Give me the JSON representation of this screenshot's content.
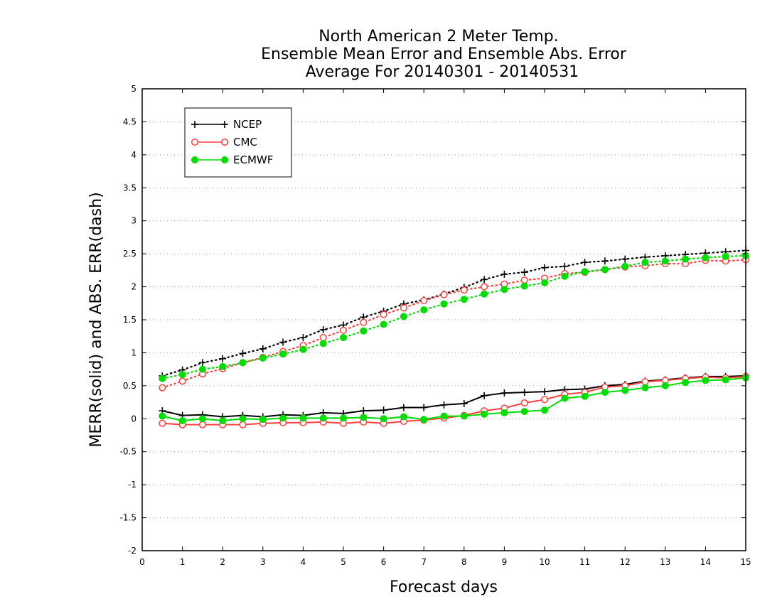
{
  "chart_data": {
    "type": "line",
    "title_lines": [
      "North American 2 Meter Temp.",
      "Ensemble Mean Error and Ensemble Abs. Error",
      "Average For 20140301 - 20140531"
    ],
    "xlabel": "Forecast days",
    "ylabel": "MERR(solid) and ABS. ERR(dash)",
    "xlim": [
      0,
      15
    ],
    "ylim": [
      -2,
      5
    ],
    "xticks": [
      0,
      1,
      2,
      3,
      4,
      5,
      6,
      7,
      8,
      9,
      10,
      11,
      12,
      13,
      14,
      15
    ],
    "yticks": [
      -2,
      -1.5,
      -1,
      -0.5,
      0,
      0.5,
      1,
      1.5,
      2,
      2.5,
      3,
      3.5,
      4,
      4.5,
      5
    ],
    "ytick_labels": [
      "-2",
      "-1.5",
      "-1",
      "-0.5",
      "0",
      "0.5",
      "1",
      "1.5",
      "2",
      "2.5",
      "3",
      "3.5",
      "4",
      "4.5",
      "5"
    ],
    "grid": "horizontal dotted",
    "legend_position": "top-left",
    "x": [
      0.5,
      1.0,
      1.5,
      2.0,
      2.5,
      3.0,
      3.5,
      4.0,
      4.5,
      5.0,
      5.5,
      6.0,
      6.5,
      7.0,
      7.5,
      8.0,
      8.5,
      9.0,
      9.5,
      10.0,
      10.5,
      11.0,
      11.5,
      12.0,
      12.5,
      13.0,
      13.5,
      14.0,
      14.5,
      15.0
    ],
    "series": [
      {
        "name": "NCEP",
        "color": "#000000",
        "marker": "plus",
        "merr": [
          0.12,
          0.05,
          0.06,
          0.03,
          0.05,
          0.03,
          0.06,
          0.05,
          0.09,
          0.08,
          0.12,
          0.13,
          0.17,
          0.17,
          0.21,
          0.23,
          0.35,
          0.39,
          0.4,
          0.41,
          0.44,
          0.45,
          0.5,
          0.52,
          0.57,
          0.59,
          0.62,
          0.64,
          0.64,
          0.65
        ],
        "abs_err": [
          0.65,
          0.74,
          0.85,
          0.91,
          0.99,
          1.06,
          1.16,
          1.23,
          1.35,
          1.42,
          1.54,
          1.63,
          1.74,
          1.8,
          1.89,
          1.99,
          2.11,
          2.19,
          2.22,
          2.29,
          2.31,
          2.37,
          2.39,
          2.42,
          2.45,
          2.47,
          2.49,
          2.51,
          2.53,
          2.55
        ]
      },
      {
        "name": "CMC",
        "color": "#ff4040",
        "marker": "open-circle",
        "merr": [
          -0.07,
          -0.09,
          -0.09,
          -0.09,
          -0.09,
          -0.07,
          -0.06,
          -0.06,
          -0.05,
          -0.07,
          -0.05,
          -0.07,
          -0.04,
          -0.02,
          0.01,
          0.05,
          0.12,
          0.16,
          0.24,
          0.29,
          0.37,
          0.4,
          0.48,
          0.5,
          0.56,
          0.58,
          0.61,
          0.63,
          0.62,
          0.64
        ],
        "abs_err": [
          0.47,
          0.57,
          0.68,
          0.76,
          0.85,
          0.93,
          1.02,
          1.11,
          1.23,
          1.34,
          1.46,
          1.58,
          1.68,
          1.79,
          1.88,
          1.95,
          2.0,
          2.04,
          2.1,
          2.13,
          2.2,
          2.22,
          2.26,
          2.3,
          2.32,
          2.35,
          2.35,
          2.4,
          2.39,
          2.41
        ]
      },
      {
        "name": "ECMWF",
        "color": "#00dd00",
        "marker": "filled-circle",
        "merr": [
          0.04,
          -0.03,
          0.0,
          -0.03,
          0.0,
          -0.01,
          0.01,
          0.01,
          0.01,
          0.01,
          0.02,
          0.0,
          0.03,
          -0.01,
          0.04,
          0.04,
          0.07,
          0.09,
          0.11,
          0.13,
          0.31,
          0.34,
          0.4,
          0.43,
          0.47,
          0.5,
          0.55,
          0.58,
          0.59,
          0.62
        ],
        "abs_err": [
          0.61,
          0.67,
          0.75,
          0.79,
          0.85,
          0.92,
          0.98,
          1.05,
          1.14,
          1.23,
          1.33,
          1.43,
          1.55,
          1.65,
          1.74,
          1.81,
          1.89,
          1.96,
          2.01,
          2.06,
          2.16,
          2.23,
          2.26,
          2.31,
          2.37,
          2.39,
          2.42,
          2.44,
          2.46,
          2.47
        ]
      }
    ]
  }
}
